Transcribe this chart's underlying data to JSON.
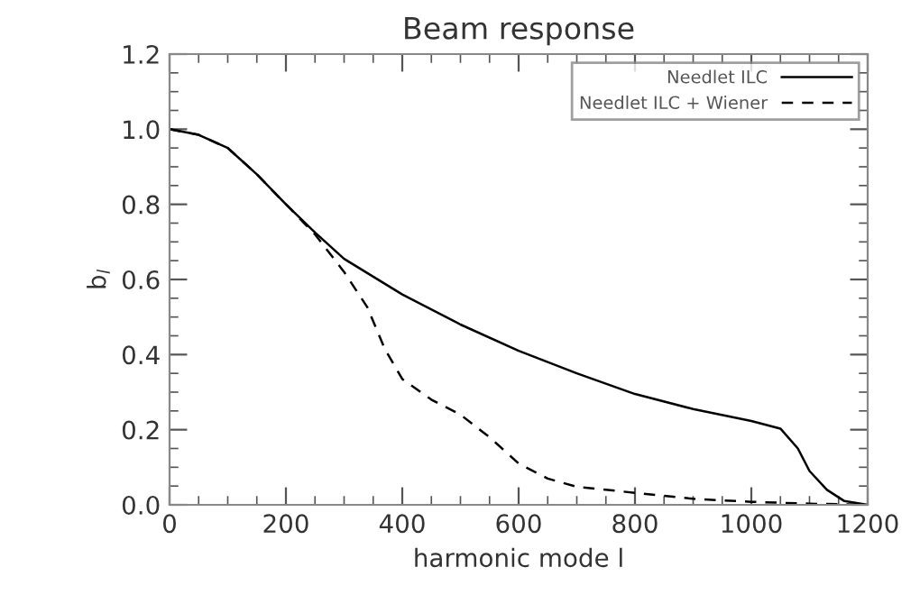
{
  "chart_data": {
    "type": "line",
    "title": "Beam response",
    "xlabel": "harmonic mode l",
    "ylabel": "b$_{l}$",
    "xlim": [
      0,
      1200
    ],
    "xticks": [
      0,
      200,
      400,
      600,
      800,
      1000,
      1200
    ],
    "ylim": [
      0,
      1.2
    ],
    "yticks": [
      {
        "value": 0,
        "label": "0.0"
      },
      0.2,
      0.4,
      0.6,
      0.8,
      {
        "value": 1,
        "label": "1.0"
      },
      1.2
    ],
    "grid": false,
    "legend": "top right",
    "marker": "none",
    "series": [
      {
        "name": "Needlet ILC",
        "color": "#000000",
        "line_style": "solid",
        "x": [
          0,
          50,
          100,
          150,
          200,
          250,
          300,
          400,
          500,
          600,
          700,
          800,
          900,
          1000,
          1050,
          1080,
          1100,
          1130,
          1160,
          1200
        ],
        "values": [
          1.0,
          0.985,
          0.95,
          0.88,
          0.8,
          0.725,
          0.655,
          0.56,
          0.48,
          0.41,
          0.35,
          0.295,
          0.255,
          0.223,
          0.203,
          0.15,
          0.09,
          0.04,
          0.01,
          0.0
        ]
      },
      {
        "name": "Needlet ILC + Wiener",
        "color": "#000000",
        "line_style": "dashed",
        "x": [
          0,
          50,
          100,
          150,
          200,
          250,
          300,
          340,
          370,
          400,
          450,
          500,
          550,
          600,
          650,
          700,
          800,
          900,
          1000,
          1100,
          1200
        ],
        "values": [
          1.0,
          0.985,
          0.95,
          0.88,
          0.8,
          0.72,
          0.62,
          0.526,
          0.415,
          0.335,
          0.28,
          0.24,
          0.18,
          0.11,
          0.07,
          0.048,
          0.032,
          0.016,
          0.008,
          0.003,
          0.0
        ]
      }
    ]
  }
}
